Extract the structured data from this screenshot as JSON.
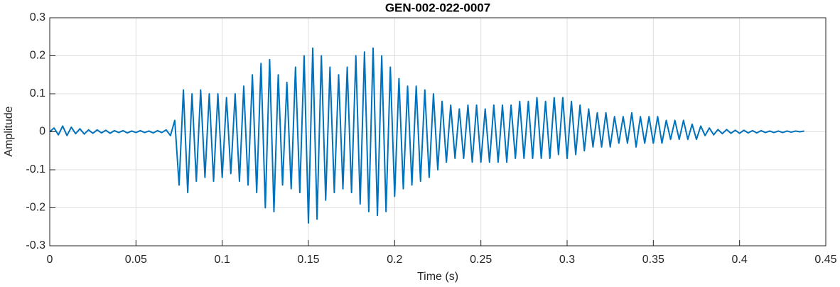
{
  "chart_data": {
    "type": "line",
    "title": "GEN-002-022-0007",
    "x_label": "Time (s)",
    "y_label": "Amplitude",
    "grid": true,
    "xlim": [
      0,
      0.45
    ],
    "xticks": [
      0,
      0.05,
      0.1,
      0.15,
      0.2,
      0.25,
      0.3,
      0.35,
      0.4,
      0.45
    ],
    "ylim": [
      -0.3,
      0.3
    ],
    "yticks": [
      -0.3,
      -0.2,
      -0.1,
      0,
      0.1,
      0.2,
      0.3
    ],
    "x": [
      0,
      0.0025,
      0.005,
      0.0075,
      0.01,
      0.0125,
      0.015,
      0.0175,
      0.02,
      0.0225,
      0.025,
      0.0275,
      0.03,
      0.0325,
      0.035,
      0.0375,
      0.04,
      0.0425,
      0.045,
      0.0475,
      0.05,
      0.0525,
      0.055,
      0.0575,
      0.06,
      0.0625,
      0.065,
      0.0675,
      0.07,
      0.0725,
      0.075,
      0.0775,
      0.08,
      0.0825,
      0.085,
      0.0875,
      0.09,
      0.0925,
      0.095,
      0.0975,
      0.1,
      0.1025,
      0.105,
      0.1075,
      0.11,
      0.1125,
      0.115,
      0.1175,
      0.12,
      0.1225,
      0.125,
      0.1275,
      0.13,
      0.1325,
      0.135,
      0.1375,
      0.14,
      0.1425,
      0.145,
      0.1475,
      0.15,
      0.1525,
      0.155,
      0.1575,
      0.16,
      0.1625,
      0.165,
      0.1675,
      0.17,
      0.1725,
      0.175,
      0.1775,
      0.18,
      0.1825,
      0.185,
      0.1875,
      0.19,
      0.1925,
      0.195,
      0.1975,
      0.2,
      0.2025,
      0.205,
      0.2075,
      0.21,
      0.2125,
      0.215,
      0.2175,
      0.22,
      0.2225,
      0.225,
      0.2275,
      0.23,
      0.2325,
      0.235,
      0.2375,
      0.24,
      0.2425,
      0.245,
      0.2475,
      0.25,
      0.2525,
      0.255,
      0.2575,
      0.26,
      0.2625,
      0.265,
      0.2675,
      0.27,
      0.2725,
      0.275,
      0.2775,
      0.28,
      0.2825,
      0.285,
      0.2875,
      0.29,
      0.2925,
      0.295,
      0.2975,
      0.3,
      0.3025,
      0.305,
      0.3075,
      0.31,
      0.3125,
      0.315,
      0.3175,
      0.32,
      0.3225,
      0.325,
      0.3275,
      0.33,
      0.3325,
      0.335,
      0.3375,
      0.34,
      0.3425,
      0.345,
      0.3475,
      0.35,
      0.3525,
      0.355,
      0.3575,
      0.36,
      0.3625,
      0.365,
      0.3675,
      0.37,
      0.3725,
      0.375,
      0.3775,
      0.38,
      0.3825,
      0.385,
      0.3875,
      0.39,
      0.3925,
      0.395,
      0.3975,
      0.4,
      0.4025,
      0.405,
      0.4075,
      0.41,
      0.4125,
      0.415,
      0.4175,
      0.42,
      0.4225,
      0.425,
      0.4275,
      0.43,
      0.4325,
      0.435,
      0.4375
    ],
    "series": [
      {
        "name": "Amplitude",
        "color": "#0072bd",
        "values": [
          0,
          0.01,
          -0.008,
          0.015,
          -0.01,
          0.012,
          -0.005,
          0.008,
          -0.006,
          0.005,
          -0.004,
          0.005,
          -0.003,
          0.004,
          -0.004,
          0.003,
          -0.002,
          0.003,
          -0.003,
          0.002,
          -0.002,
          0.003,
          -0.002,
          0.002,
          -0.003,
          0.003,
          -0.002,
          0.005,
          -0.01,
          0.03,
          -0.14,
          0.11,
          -0.16,
          0.1,
          -0.13,
          0.11,
          -0.12,
          0.1,
          -0.13,
          0.1,
          -0.12,
          0.09,
          -0.11,
          0.1,
          -0.13,
          0.12,
          -0.14,
          0.15,
          -0.16,
          0.18,
          -0.2,
          0.19,
          -0.21,
          0.15,
          -0.14,
          0.13,
          -0.15,
          0.17,
          -0.16,
          0.2,
          -0.24,
          0.22,
          -0.23,
          0.2,
          -0.18,
          0.17,
          -0.16,
          0.15,
          -0.15,
          0.17,
          -0.16,
          0.2,
          -0.19,
          0.21,
          -0.21,
          0.22,
          -0.22,
          0.2,
          -0.21,
          0.17,
          -0.17,
          0.14,
          -0.15,
          0.12,
          -0.14,
          0.12,
          -0.13,
          0.11,
          -0.12,
          0.1,
          -0.1,
          0.08,
          -0.08,
          0.07,
          -0.07,
          0.06,
          -0.07,
          0.07,
          -0.08,
          0.07,
          -0.08,
          0.06,
          -0.08,
          0.07,
          -0.08,
          0.07,
          -0.08,
          0.07,
          -0.07,
          0.08,
          -0.07,
          0.08,
          -0.07,
          0.09,
          -0.07,
          0.08,
          -0.07,
          0.09,
          -0.06,
          0.09,
          -0.07,
          0.08,
          -0.06,
          0.07,
          -0.05,
          0.06,
          -0.04,
          0.05,
          -0.04,
          0.05,
          -0.04,
          0.04,
          -0.03,
          0.04,
          -0.03,
          0.05,
          -0.04,
          0.04,
          -0.03,
          0.04,
          -0.03,
          0.04,
          -0.03,
          0.03,
          -0.02,
          0.03,
          -0.02,
          0.03,
          -0.02,
          0.02,
          -0.02,
          0.015,
          -0.01,
          0.01,
          -0.008,
          0.006,
          -0.005,
          0.006,
          -0.004,
          0.004,
          -0.004,
          0.004,
          -0.003,
          0.003,
          -0.003,
          0.003,
          -0.002,
          0.002,
          -0.002,
          0.002,
          -0.002,
          0.002,
          -0.001,
          0.002,
          0,
          0.002
        ]
      }
    ]
  }
}
